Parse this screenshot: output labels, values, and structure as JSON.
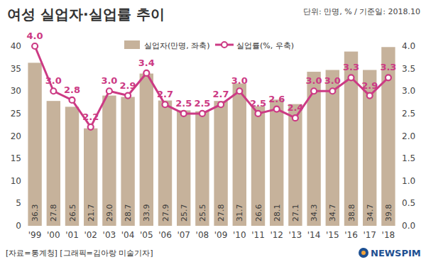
{
  "chart_data": {
    "type": "bar",
    "title": "여성 실업자·실업률 추이",
    "subtitle": "단위: 만명, % / 기준일: 2018.10",
    "annotations": [
      "[자료=통계청] [그래픽=김아랑 미술기자]",
      "NEWSPIM"
    ],
    "categories": [
      "'99",
      "'00",
      "'01",
      "'02",
      "'03",
      "'04",
      "'05",
      "'06",
      "'07",
      "'08",
      "'09",
      "'10",
      "'11",
      "'12",
      "'13",
      "'14",
      "'15",
      "'16",
      "'17",
      "'18"
    ],
    "series": [
      {
        "name": "실업자(만명, 좌축)",
        "type": "bar",
        "color": "#c6b29b",
        "values": [
          36.3,
          27.8,
          26.5,
          21.7,
          29.0,
          28.7,
          33.9,
          27.9,
          25.7,
          25.5,
          27.8,
          31.7,
          26.6,
          28.1,
          27.1,
          34.3,
          34.7,
          38.8,
          34.7,
          39.8
        ],
        "value_labels": [
          "36.3",
          "27.8",
          "26.5",
          "21.7",
          "29.0",
          "28.7",
          "33.9",
          "27.9",
          "25.7",
          "25.5",
          "27.8",
          "31.7",
          "26.6",
          "28.1",
          "27.1",
          "34.3",
          "34.7",
          "38.8",
          "34.7",
          "39.8"
        ]
      },
      {
        "name": "실업률(%, 우축)",
        "type": "line",
        "axis": "y2",
        "color": "#cc3a84",
        "marker": "circle",
        "values": [
          4.0,
          3.0,
          2.8,
          2.2,
          3.0,
          2.9,
          3.4,
          2.7,
          2.5,
          2.5,
          2.7,
          3.0,
          2.5,
          2.6,
          2.4,
          3.0,
          3.0,
          3.3,
          2.9,
          3.3
        ],
        "value_labels": [
          "4.0",
          "3.0",
          "2.8",
          "2.2",
          "3.0",
          "2.9",
          "3.4",
          "2.7",
          "2.5",
          "2.5",
          "2.7",
          "3.0",
          "2.5",
          "2.6",
          "2.4",
          "3.0",
          "3.0",
          "3.3",
          "2.9",
          "3.3"
        ]
      }
    ],
    "ylim": [
      0,
      40
    ],
    "yticks": [
      0,
      5,
      10,
      15,
      20,
      25,
      30,
      35,
      40
    ],
    "y2lim": [
      0,
      4
    ],
    "y2ticks": [
      {
        "value": 0,
        "label": "0.0"
      },
      0.5,
      {
        "value": 1,
        "label": "1.0"
      },
      1.5,
      {
        "value": 2,
        "label": "2.0"
      },
      2.5,
      {
        "value": 3,
        "label": "3.0"
      },
      3.5,
      {
        "value": 4,
        "label": "4.0"
      }
    ],
    "grid": false,
    "legend": "top",
    "data_labels": true
  }
}
